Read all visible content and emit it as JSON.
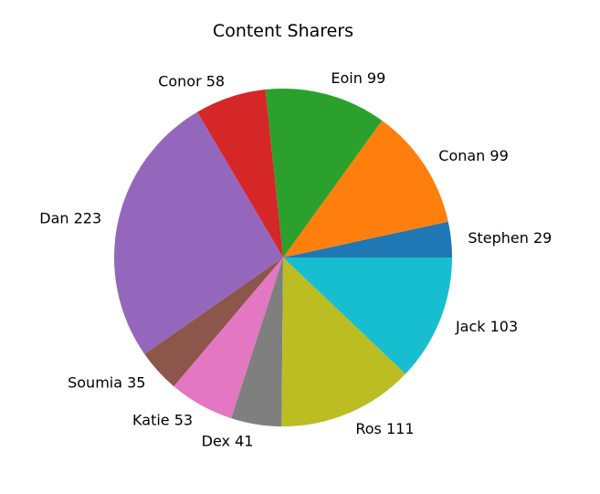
{
  "chart_data": {
    "type": "pie",
    "title": "Content Sharers",
    "slices": [
      {
        "name": "Stephen",
        "value": 29,
        "label": "Stephen 29",
        "color": "#1f77b4"
      },
      {
        "name": "Conan",
        "value": 99,
        "label": "Conan 99",
        "color": "#ff7f0e"
      },
      {
        "name": "Eoin",
        "value": 99,
        "label": "Eoin 99",
        "color": "#2ca02c"
      },
      {
        "name": "Conor",
        "value": 58,
        "label": "Conor 58",
        "color": "#d62728"
      },
      {
        "name": "Dan",
        "value": 223,
        "label": "Dan 223",
        "color": "#9467bd"
      },
      {
        "name": "Soumia",
        "value": 35,
        "label": "Soumia 35",
        "color": "#8c564b"
      },
      {
        "name": "Katie",
        "value": 53,
        "label": "Katie 53",
        "color": "#e377c2"
      },
      {
        "name": "Dex",
        "value": 41,
        "label": "Dex 41",
        "color": "#7f7f7f"
      },
      {
        "name": "Ros",
        "value": 111,
        "label": "Ros 111",
        "color": "#bcbd22"
      },
      {
        "name": "Jack",
        "value": 103,
        "label": "Jack 103",
        "color": "#17becf"
      }
    ]
  }
}
